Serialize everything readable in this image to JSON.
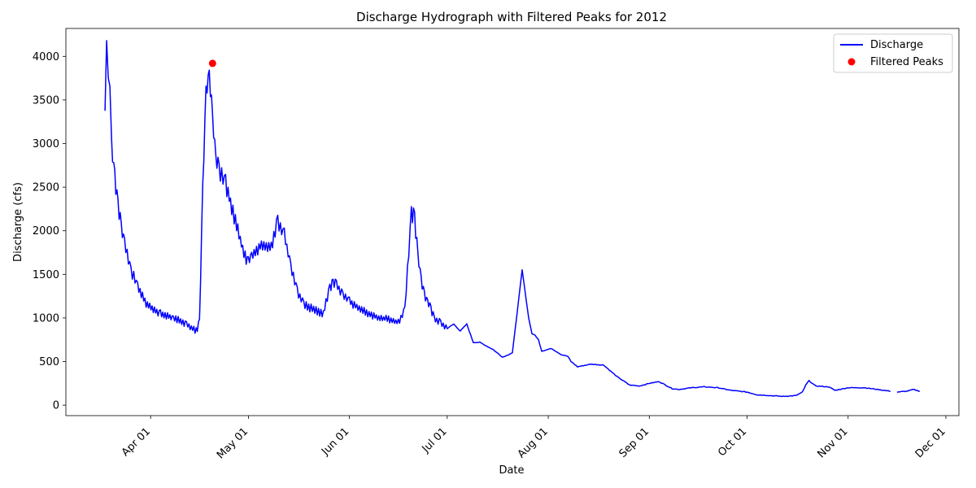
{
  "chart_data": {
    "type": "line",
    "title": "Discharge Hydrograph with Filtered Peaks for 2012",
    "xlabel": "Date",
    "ylabel": "Discharge (cfs)",
    "x_ticks": [
      "Apr 01",
      "May 01",
      "Jun 01",
      "Jul 01",
      "Aug 01",
      "Sep 01",
      "Oct 01",
      "Nov 01",
      "Dec 01"
    ],
    "x_tick_dates": [
      "2012-04-01",
      "2012-05-01",
      "2012-06-01",
      "2012-07-01",
      "2012-08-01",
      "2012-09-01",
      "2012-10-01",
      "2012-11-01",
      "2012-12-01"
    ],
    "xlim": [
      "2012-03-06",
      "2012-12-05"
    ],
    "y_ticks": [
      0,
      500,
      1000,
      1500,
      2000,
      2500,
      3000,
      3500,
      4000
    ],
    "ylim": [
      -120,
      4320
    ],
    "grid": false,
    "legend_placement": "top-right",
    "series": [
      {
        "name": "Discharge",
        "color": "#0000ff",
        "noise_band_until": "2012-07-01",
        "x": [
          "2012-03-18",
          "2012-03-18T12",
          "2012-03-19",
          "2012-03-19T12",
          "2012-03-20",
          "2012-03-21",
          "2012-03-22",
          "2012-03-23",
          "2012-03-24",
          "2012-03-26",
          "2012-03-28",
          "2012-03-31",
          "2012-04-04",
          "2012-04-08",
          "2012-04-12",
          "2012-04-15",
          "2012-04-16",
          "2012-04-17",
          "2012-04-18",
          "2012-04-19",
          "2012-04-20",
          "2012-04-21",
          "2012-04-22",
          "2012-04-24",
          "2012-04-27",
          "2012-04-30",
          "2012-05-01",
          "2012-05-02",
          "2012-05-05",
          "2012-05-08",
          "2012-05-10",
          "2012-05-12",
          "2012-05-14",
          "2012-05-16",
          "2012-05-18",
          "2012-05-21",
          "2012-05-24",
          "2012-05-26",
          "2012-05-27",
          "2012-05-28",
          "2012-05-30",
          "2012-06-01",
          "2012-06-04",
          "2012-06-07",
          "2012-06-10",
          "2012-06-13",
          "2012-06-16",
          "2012-06-18",
          "2012-06-20",
          "2012-06-21",
          "2012-06-22",
          "2012-06-23",
          "2012-06-24",
          "2012-06-25",
          "2012-06-26",
          "2012-06-27",
          "2012-06-29",
          "2012-07-01",
          "2012-07-03",
          "2012-07-05",
          "2012-07-07",
          "2012-07-09",
          "2012-07-11",
          "2012-07-13",
          "2012-07-15",
          "2012-07-18",
          "2012-07-21",
          "2012-07-24",
          "2012-07-26",
          "2012-07-27",
          "2012-07-28",
          "2012-07-29",
          "2012-07-30",
          "2012-08-02",
          "2012-08-05",
          "2012-08-07",
          "2012-08-08",
          "2012-08-10",
          "2012-08-14",
          "2012-08-18",
          "2012-08-22",
          "2012-08-26",
          "2012-08-29",
          "2012-09-01",
          "2012-09-04",
          "2012-09-08",
          "2012-09-10",
          "2012-09-14",
          "2012-09-18",
          "2012-09-22",
          "2012-09-26",
          "2012-10-01",
          "2012-10-04",
          "2012-10-08",
          "2012-10-12",
          "2012-10-16",
          "2012-10-18",
          "2012-10-19",
          "2012-10-20",
          "2012-10-22",
          "2012-10-26",
          "2012-10-28",
          "2012-11-01",
          "2012-11-06",
          "2012-11-10",
          "2012-11-14",
          null,
          "2012-11-16",
          "2012-11-19",
          "2012-11-21",
          "2012-11-23"
        ],
        "y": [
          3300,
          4100,
          3700,
          3600,
          3000,
          2600,
          2300,
          2050,
          1850,
          1550,
          1350,
          1150,
          1050,
          1000,
          930,
          850,
          950,
          2500,
          3600,
          3750,
          3300,
          2800,
          2700,
          2550,
          2100,
          1700,
          1650,
          1700,
          1850,
          1800,
          2100,
          1950,
          1600,
          1300,
          1150,
          1100,
          1050,
          1350,
          1400,
          1380,
          1250,
          1200,
          1100,
          1050,
          1000,
          990,
          950,
          1100,
          2200,
          2150,
          1700,
          1450,
          1250,
          1180,
          1100,
          1000,
          940,
          880,
          930,
          850,
          930,
          720,
          720,
          680,
          640,
          550,
          600,
          1550,
          1000,
          820,
          800,
          750,
          620,
          650,
          580,
          560,
          500,
          440,
          470,
          460,
          330,
          230,
          220,
          250,
          270,
          190,
          180,
          200,
          210,
          200,
          170,
          150,
          120,
          110,
          100,
          110,
          150,
          230,
          280,
          220,
          210,
          170,
          200,
          200,
          180,
          160,
          null,
          150,
          160,
          180,
          160
        ]
      },
      {
        "name": "Filtered Peaks",
        "color": "#ff0000",
        "marker": "circle",
        "x": [
          "2012-04-20"
        ],
        "y": [
          3920
        ]
      }
    ]
  }
}
